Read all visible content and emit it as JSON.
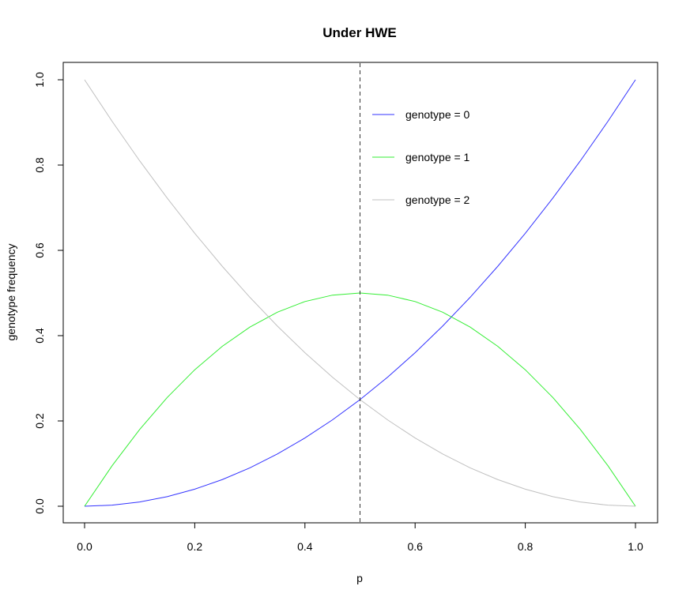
{
  "chart_data": {
    "type": "line",
    "title": "Under HWE",
    "xlabel": "p",
    "ylabel": "genotype frequency",
    "xlim": [
      0,
      1
    ],
    "ylim": [
      0,
      1
    ],
    "x_ticks": [
      "0.0",
      "0.2",
      "0.4",
      "0.6",
      "0.8",
      "1.0"
    ],
    "y_ticks": [
      "0.0",
      "0.2",
      "0.4",
      "0.6",
      "0.8",
      "1.0"
    ],
    "x": [
      0.0,
      0.05,
      0.1,
      0.15,
      0.2,
      0.25,
      0.3,
      0.35,
      0.4,
      0.45,
      0.5,
      0.55,
      0.6,
      0.65,
      0.7,
      0.75,
      0.8,
      0.85,
      0.9,
      0.95,
      1.0
    ],
    "series": [
      {
        "name": "genotype = 0",
        "color": "#3333ff",
        "values": [
          0.0,
          0.0025,
          0.01,
          0.0225,
          0.04,
          0.0625,
          0.09,
          0.1225,
          0.16,
          0.2025,
          0.25,
          0.3025,
          0.36,
          0.4225,
          0.49,
          0.5625,
          0.64,
          0.7225,
          0.81,
          0.9025,
          1.0
        ]
      },
      {
        "name": "genotype = 1",
        "color": "#33ee33",
        "values": [
          0.0,
          0.095,
          0.18,
          0.255,
          0.32,
          0.375,
          0.42,
          0.455,
          0.48,
          0.495,
          0.5,
          0.495,
          0.48,
          0.455,
          0.42,
          0.375,
          0.32,
          0.255,
          0.18,
          0.095,
          0.0
        ]
      },
      {
        "name": "genotype = 2",
        "color": "#c0c0c0",
        "values": [
          1.0,
          0.9025,
          0.81,
          0.7225,
          0.64,
          0.5625,
          0.49,
          0.4225,
          0.36,
          0.3025,
          0.25,
          0.2025,
          0.16,
          0.1225,
          0.09,
          0.0625,
          0.04,
          0.0225,
          0.01,
          0.0025,
          0.0
        ]
      }
    ],
    "vline": {
      "x": 0.5,
      "style": "dashed",
      "color": "#333333"
    },
    "legend_position": "top-right",
    "grid": false
  }
}
